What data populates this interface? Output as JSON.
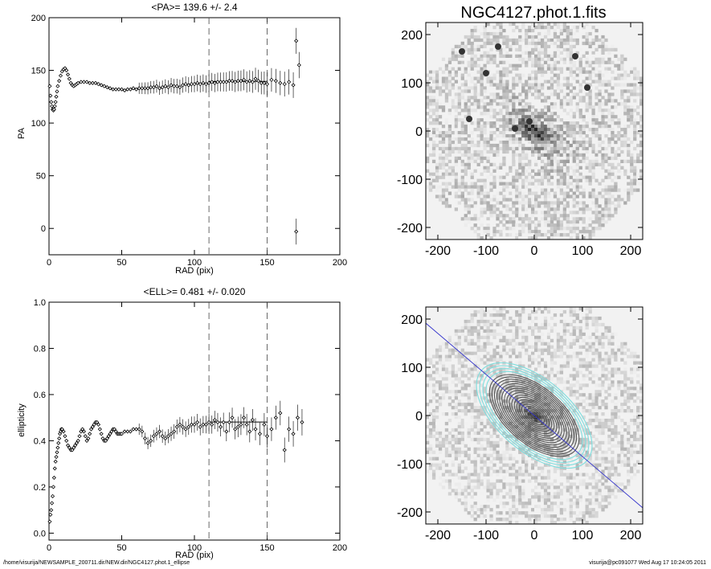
{
  "footer": {
    "path": "/home/visurija/NEWSAMPLE_200711.dir/NEW.dir/NGC4127.phot.1_ellipse",
    "stamp": "visurija@pc091077  Wed Aug 17 10:24:05 2011"
  },
  "chart_data": [
    {
      "type": "scatter",
      "title": "<PA>= 139.6 +/-   2.4",
      "xlabel": "RAD (pix)",
      "ylabel": "PA",
      "xlim": [
        0,
        200
      ],
      "ylim": [
        -25,
        200
      ],
      "xticks": [
        0,
        50,
        100,
        150,
        200
      ],
      "yticks": [
        0,
        50,
        100,
        150,
        200
      ],
      "vlines": [
        110,
        150
      ],
      "mean_line": {
        "x": [
          110,
          150
        ],
        "y": 139.6
      },
      "points": [
        [
          0.5,
          135
        ],
        [
          1,
          126
        ],
        [
          1.5,
          120
        ],
        [
          2,
          116
        ],
        [
          2.5,
          113
        ],
        [
          3,
          112
        ],
        [
          3.5,
          113
        ],
        [
          4,
          116
        ],
        [
          4.5,
          120
        ],
        [
          5,
          125
        ],
        [
          5.5,
          130
        ],
        [
          6,
          135
        ],
        [
          7,
          140
        ],
        [
          8,
          145
        ],
        [
          9,
          149
        ],
        [
          10,
          151
        ],
        [
          11,
          152
        ],
        [
          12,
          150
        ],
        [
          13,
          146
        ],
        [
          14,
          142
        ],
        [
          15,
          138
        ],
        [
          16,
          136
        ],
        [
          17,
          135
        ],
        [
          18,
          136
        ],
        [
          19,
          137
        ],
        [
          20,
          138
        ],
        [
          22,
          139
        ],
        [
          24,
          139
        ],
        [
          26,
          139
        ],
        [
          28,
          138
        ],
        [
          30,
          138
        ],
        [
          32,
          138
        ],
        [
          34,
          137
        ],
        [
          36,
          136
        ],
        [
          38,
          135
        ],
        [
          40,
          134
        ],
        [
          42,
          133
        ],
        [
          44,
          132
        ],
        [
          46,
          132
        ],
        [
          48,
          132
        ],
        [
          50,
          132
        ],
        [
          52,
          131
        ],
        [
          54,
          132
        ],
        [
          56,
          132
        ],
        [
          58,
          133
        ],
        [
          60,
          132
        ],
        [
          62,
          133
        ],
        [
          64,
          133
        ],
        [
          66,
          133
        ],
        [
          68,
          133
        ],
        [
          70,
          134
        ],
        [
          72,
          134
        ],
        [
          74,
          135
        ],
        [
          76,
          133
        ],
        [
          78,
          134
        ],
        [
          80,
          135
        ],
        [
          82,
          134
        ],
        [
          84,
          136
        ],
        [
          86,
          135
        ],
        [
          88,
          135
        ],
        [
          90,
          134
        ],
        [
          92,
          136
        ],
        [
          94,
          137
        ],
        [
          96,
          136
        ],
        [
          98,
          137
        ],
        [
          100,
          137
        ],
        [
          102,
          138
        ],
        [
          104,
          137
        ],
        [
          106,
          138
        ],
        [
          108,
          137
        ],
        [
          110,
          138
        ],
        [
          112,
          139
        ],
        [
          114,
          138
        ],
        [
          116,
          139
        ],
        [
          118,
          139
        ],
        [
          120,
          139
        ],
        [
          122,
          139
        ],
        [
          124,
          140
        ],
        [
          126,
          140
        ],
        [
          128,
          139
        ],
        [
          130,
          140
        ],
        [
          132,
          140
        ],
        [
          134,
          141
        ],
        [
          136,
          139
        ],
        [
          138,
          140
        ],
        [
          140,
          139
        ],
        [
          142,
          142
        ],
        [
          144,
          140
        ],
        [
          146,
          138
        ],
        [
          148,
          138
        ],
        [
          150,
          137
        ],
        [
          153,
          141
        ],
        [
          156,
          140
        ],
        [
          159,
          138
        ],
        [
          162,
          137
        ],
        [
          165,
          139
        ],
        [
          168,
          136
        ],
        [
          170,
          178
        ],
        [
          172,
          155
        ],
        [
          170,
          -3
        ]
      ]
    },
    {
      "type": "scatter",
      "title": "<ELL>= 0.481 +/-  0.020",
      "xlabel": "RAD (pix)",
      "ylabel": "ellipticity",
      "xlim": [
        0,
        200
      ],
      "ylim": [
        -0.03,
        1.0
      ],
      "xticks": [
        0,
        50,
        100,
        150,
        200
      ],
      "yticks": [
        0.0,
        0.2,
        0.4,
        0.6,
        0.8,
        1.0
      ],
      "vlines": [
        110,
        150
      ],
      "mean_line": {
        "x": [
          110,
          150
        ],
        "y": 0.481
      },
      "points": [
        [
          0.5,
          0.05
        ],
        [
          1,
          0.08
        ],
        [
          1.5,
          0.1
        ],
        [
          2,
          0.13
        ],
        [
          2.5,
          0.16
        ],
        [
          3,
          0.2
        ],
        [
          3.5,
          0.24
        ],
        [
          4,
          0.28
        ],
        [
          4.5,
          0.31
        ],
        [
          5,
          0.33
        ],
        [
          5.5,
          0.35
        ],
        [
          6,
          0.37
        ],
        [
          6.5,
          0.39
        ],
        [
          7,
          0.41
        ],
        [
          7.5,
          0.43
        ],
        [
          8,
          0.44
        ],
        [
          8.5,
          0.45
        ],
        [
          9,
          0.45
        ],
        [
          10,
          0.44
        ],
        [
          11,
          0.42
        ],
        [
          12,
          0.4
        ],
        [
          13,
          0.38
        ],
        [
          14,
          0.37
        ],
        [
          15,
          0.36
        ],
        [
          16,
          0.36
        ],
        [
          17,
          0.37
        ],
        [
          18,
          0.38
        ],
        [
          19,
          0.39
        ],
        [
          20,
          0.4
        ],
        [
          21,
          0.42
        ],
        [
          22,
          0.44
        ],
        [
          23,
          0.45
        ],
        [
          24,
          0.44
        ],
        [
          25,
          0.42
        ],
        [
          26,
          0.4
        ],
        [
          27,
          0.41
        ],
        [
          28,
          0.43
        ],
        [
          29,
          0.45
        ],
        [
          30,
          0.46
        ],
        [
          31,
          0.47
        ],
        [
          32,
          0.48
        ],
        [
          33,
          0.48
        ],
        [
          34,
          0.47
        ],
        [
          35,
          0.45
        ],
        [
          36,
          0.43
        ],
        [
          37,
          0.41
        ],
        [
          38,
          0.4
        ],
        [
          39,
          0.4
        ],
        [
          40,
          0.41
        ],
        [
          41,
          0.42
        ],
        [
          42,
          0.43
        ],
        [
          43,
          0.44
        ],
        [
          44,
          0.45
        ],
        [
          45,
          0.45
        ],
        [
          46,
          0.44
        ],
        [
          47,
          0.43
        ],
        [
          48,
          0.43
        ],
        [
          49,
          0.43
        ],
        [
          50,
          0.43
        ],
        [
          52,
          0.44
        ],
        [
          54,
          0.44
        ],
        [
          56,
          0.44
        ],
        [
          58,
          0.45
        ],
        [
          60,
          0.45
        ],
        [
          62,
          0.45
        ],
        [
          64,
          0.44
        ],
        [
          66,
          0.41
        ],
        [
          68,
          0.39
        ],
        [
          70,
          0.4
        ],
        [
          72,
          0.42
        ],
        [
          74,
          0.43
        ],
        [
          76,
          0.44
        ],
        [
          78,
          0.42
        ],
        [
          80,
          0.41
        ],
        [
          82,
          0.42
        ],
        [
          84,
          0.43
        ],
        [
          86,
          0.44
        ],
        [
          88,
          0.46
        ],
        [
          90,
          0.47
        ],
        [
          92,
          0.46
        ],
        [
          94,
          0.45
        ],
        [
          96,
          0.46
        ],
        [
          98,
          0.47
        ],
        [
          100,
          0.47
        ],
        [
          102,
          0.48
        ],
        [
          104,
          0.46
        ],
        [
          106,
          0.47
        ],
        [
          108,
          0.47
        ],
        [
          110,
          0.48
        ],
        [
          112,
          0.47
        ],
        [
          114,
          0.49
        ],
        [
          116,
          0.48
        ],
        [
          118,
          0.46
        ],
        [
          120,
          0.48
        ],
        [
          122,
          0.44
        ],
        [
          124,
          0.48
        ],
        [
          126,
          0.5
        ],
        [
          128,
          0.45
        ],
        [
          130,
          0.46
        ],
        [
          132,
          0.47
        ],
        [
          134,
          0.5
        ],
        [
          136,
          0.47
        ],
        [
          138,
          0.44
        ],
        [
          140,
          0.49
        ],
        [
          142,
          0.45
        ],
        [
          145,
          0.43
        ],
        [
          148,
          0.47
        ],
        [
          150,
          0.42
        ],
        [
          153,
          0.45
        ],
        [
          156,
          0.5
        ],
        [
          159,
          0.52
        ],
        [
          162,
          0.36
        ],
        [
          165,
          0.45
        ],
        [
          168,
          0.43
        ],
        [
          171,
          0.5
        ],
        [
          174,
          0.48
        ]
      ]
    },
    {
      "type": "image",
      "title": "NGC4127.phot.1.fits",
      "xlim": [
        -225,
        225
      ],
      "ylim": [
        -225,
        225
      ],
      "xticks": [
        -200,
        -100,
        0,
        100,
        200
      ],
      "yticks": [
        -200,
        -100,
        0,
        100,
        200
      ]
    },
    {
      "type": "image",
      "title": "",
      "xlim": [
        -225,
        225
      ],
      "ylim": [
        -225,
        225
      ],
      "xticks": [
        -200,
        -100,
        0,
        100,
        200
      ],
      "yticks": [
        -200,
        -100,
        0,
        100,
        200
      ],
      "contour_pa_deg": 139.6,
      "contour_ell": 0.481
    }
  ]
}
